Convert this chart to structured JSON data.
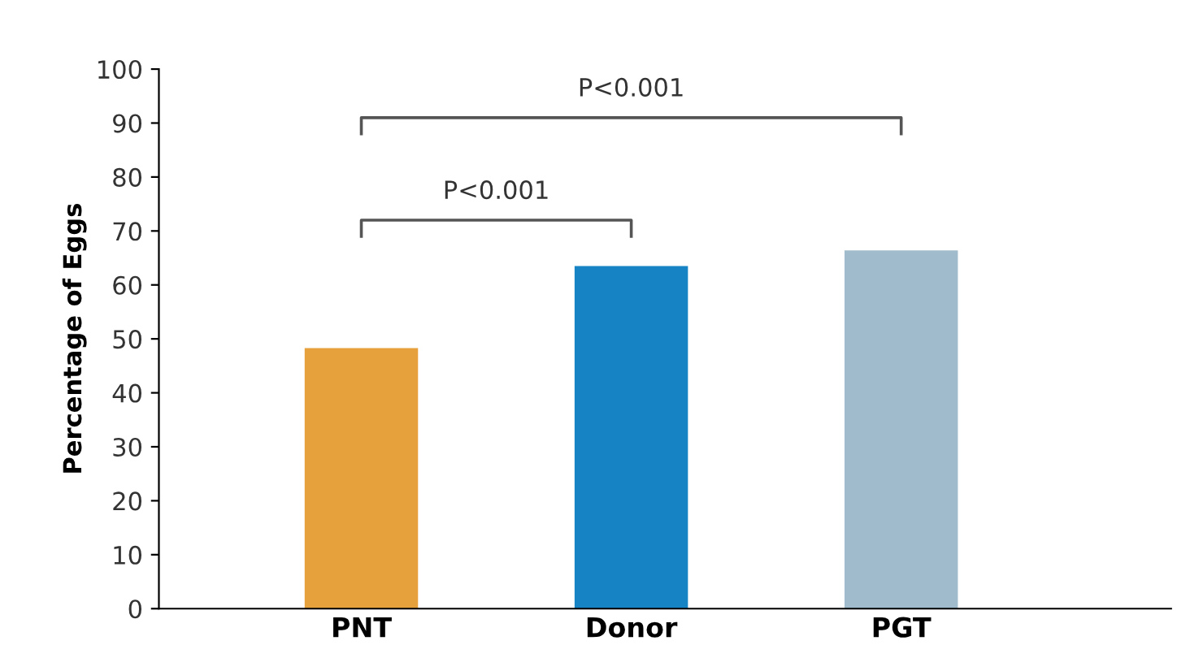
{
  "chart_data": {
    "type": "bar",
    "ylabel": "Percentage of Eggs",
    "categories": [
      "PNT",
      "Donor",
      "PGT"
    ],
    "values": [
      48.3,
      63.5,
      66.4
    ],
    "colors": [
      "#e6a03c",
      "#1684c4",
      "#a0bbcb"
    ],
    "ylim": [
      0,
      100
    ],
    "yticks": [
      0,
      10,
      20,
      30,
      40,
      50,
      60,
      70,
      80,
      90,
      100
    ],
    "grid": false,
    "annotations": [
      "P<0.001",
      "P<0.001"
    ]
  }
}
